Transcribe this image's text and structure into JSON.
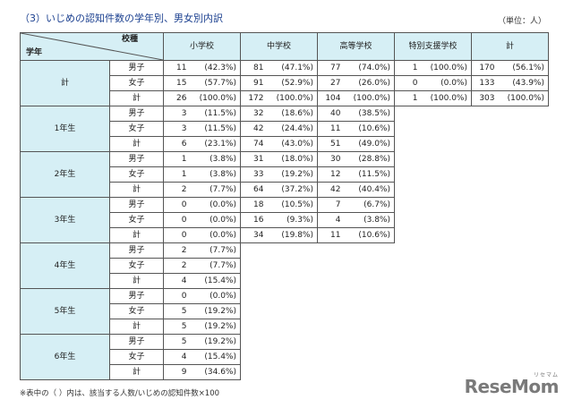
{
  "title": "（3）いじめの認知件数の学年別、男女別内訳",
  "unit": "（単位：人）",
  "header": {
    "corner_top": "校種",
    "corner_bottom": "学年",
    "columns": [
      "小学校",
      "中学校",
      "高等学校",
      "特別支援学校",
      "計"
    ]
  },
  "rows": [
    {
      "grade": "計",
      "sub": [
        {
          "sex": "男子",
          "vals": [
            [
              "11",
              "(42.3%)"
            ],
            [
              "81",
              "(47.1%)"
            ],
            [
              "77",
              "(74.0%)"
            ],
            [
              "1",
              "(100.0%)"
            ],
            [
              "170",
              "(56.1%)"
            ]
          ]
        },
        {
          "sex": "女子",
          "vals": [
            [
              "15",
              "(57.7%)"
            ],
            [
              "91",
              "(52.9%)"
            ],
            [
              "27",
              "(26.0%)"
            ],
            [
              "0",
              "(0.0%)"
            ],
            [
              "133",
              "(43.9%)"
            ]
          ]
        },
        {
          "sex": "計",
          "vals": [
            [
              "26",
              "(100.0%)"
            ],
            [
              "172",
              "(100.0%)"
            ],
            [
              "104",
              "(100.0%)"
            ],
            [
              "1",
              "(100.0%)"
            ],
            [
              "303",
              "(100.0%)"
            ]
          ]
        }
      ]
    },
    {
      "grade": "1年生",
      "sub": [
        {
          "sex": "男子",
          "vals": [
            [
              "3",
              "(11.5%)"
            ],
            [
              "32",
              "(18.6%)"
            ],
            [
              "40",
              "(38.5%)"
            ]
          ]
        },
        {
          "sex": "女子",
          "vals": [
            [
              "3",
              "(11.5%)"
            ],
            [
              "42",
              "(24.4%)"
            ],
            [
              "11",
              "(10.6%)"
            ]
          ]
        },
        {
          "sex": "計",
          "vals": [
            [
              "6",
              "(23.1%)"
            ],
            [
              "74",
              "(43.0%)"
            ],
            [
              "51",
              "(49.0%)"
            ]
          ]
        }
      ]
    },
    {
      "grade": "2年生",
      "sub": [
        {
          "sex": "男子",
          "vals": [
            [
              "1",
              "(3.8%)"
            ],
            [
              "31",
              "(18.0%)"
            ],
            [
              "30",
              "(28.8%)"
            ]
          ]
        },
        {
          "sex": "女子",
          "vals": [
            [
              "1",
              "(3.8%)"
            ],
            [
              "33",
              "(19.2%)"
            ],
            [
              "12",
              "(11.5%)"
            ]
          ]
        },
        {
          "sex": "計",
          "vals": [
            [
              "2",
              "(7.7%)"
            ],
            [
              "64",
              "(37.2%)"
            ],
            [
              "42",
              "(40.4%)"
            ]
          ]
        }
      ]
    },
    {
      "grade": "3年生",
      "sub": [
        {
          "sex": "男子",
          "vals": [
            [
              "0",
              "(0.0%)"
            ],
            [
              "18",
              "(10.5%)"
            ],
            [
              "7",
              "(6.7%)"
            ]
          ]
        },
        {
          "sex": "女子",
          "vals": [
            [
              "0",
              "(0.0%)"
            ],
            [
              "16",
              "(9.3%)"
            ],
            [
              "4",
              "(3.8%)"
            ]
          ]
        },
        {
          "sex": "計",
          "vals": [
            [
              "0",
              "(0.0%)"
            ],
            [
              "34",
              "(19.8%)"
            ],
            [
              "11",
              "(10.6%)"
            ]
          ]
        }
      ]
    },
    {
      "grade": "4年生",
      "sub": [
        {
          "sex": "男子",
          "vals": [
            [
              "2",
              "(7.7%)"
            ]
          ]
        },
        {
          "sex": "女子",
          "vals": [
            [
              "2",
              "(7.7%)"
            ]
          ]
        },
        {
          "sex": "計",
          "vals": [
            [
              "4",
              "(15.4%)"
            ]
          ]
        }
      ]
    },
    {
      "grade": "5年生",
      "sub": [
        {
          "sex": "男子",
          "vals": [
            [
              "0",
              "(0.0%)"
            ]
          ]
        },
        {
          "sex": "女子",
          "vals": [
            [
              "5",
              "(19.2%)"
            ]
          ]
        },
        {
          "sex": "計",
          "vals": [
            [
              "5",
              "(19.2%)"
            ]
          ]
        }
      ]
    },
    {
      "grade": "6年生",
      "sub": [
        {
          "sex": "男子",
          "vals": [
            [
              "5",
              "(19.2%)"
            ]
          ]
        },
        {
          "sex": "女子",
          "vals": [
            [
              "4",
              "(15.4%)"
            ]
          ]
        },
        {
          "sex": "計",
          "vals": [
            [
              "9",
              "(34.6%)"
            ]
          ]
        }
      ]
    }
  ],
  "note": "※表中の（ ）内は、該当する人数/いじめの認知件数×100",
  "logo": {
    "text": "ReseMom",
    "ruby": "リセマム"
  }
}
